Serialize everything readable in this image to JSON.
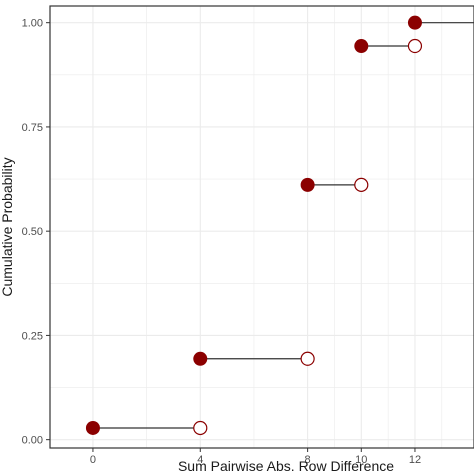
{
  "chart_data": {
    "type": "scatter",
    "subtype": "ecdf-step",
    "title": "",
    "xlabel": "Sum Pairwise Abs. Row Difference",
    "ylabel": "Cumulative Probability",
    "xlim": [
      -1.6,
      14.2
    ],
    "ylim": [
      -0.02,
      1.04
    ],
    "x_ticks": [
      0,
      4,
      8,
      10,
      12
    ],
    "x_tick_labels": [
      "0",
      "4",
      "8",
      "10",
      "12"
    ],
    "y_ticks": [
      0.0,
      0.25,
      0.5,
      0.75,
      1.0
    ],
    "y_tick_labels": [
      "0.00",
      "0.25",
      "0.50",
      "0.75",
      "1.00"
    ],
    "grid": true,
    "steps": [
      {
        "x_start": 0,
        "x_end": 4,
        "y": 0.028
      },
      {
        "x_start": 4,
        "x_end": 8,
        "y": 0.194
      },
      {
        "x_start": 8,
        "x_end": 10,
        "y": 0.611
      },
      {
        "x_start": 10,
        "x_end": 12,
        "y": 0.944
      },
      {
        "x_start": 12,
        "x_end": 14.2,
        "y": 1.0
      }
    ],
    "colors": {
      "point": "#8b0000",
      "segment": "#333333",
      "open_point_stroke": "#8b0000",
      "panel_border": "#333333",
      "grid": "#ebebeb"
    }
  }
}
